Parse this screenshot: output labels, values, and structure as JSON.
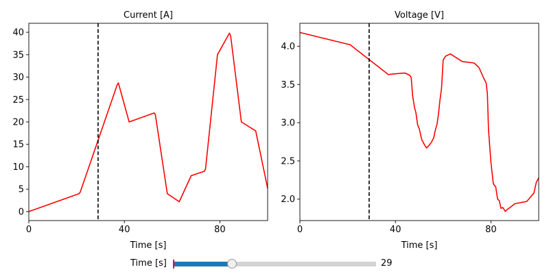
{
  "chart_data": [
    {
      "type": "line",
      "title": "Current [A]",
      "xlabel": "Time [s]",
      "ylabel": "",
      "xlim": [
        0,
        100
      ],
      "ylim": [
        -2,
        42
      ],
      "xticks": [
        0,
        40,
        80
      ],
      "yticks": [
        0,
        5,
        10,
        15,
        20,
        25,
        30,
        35,
        40
      ],
      "grid": false,
      "color": "#ff0000",
      "marker_x": 29,
      "x": [
        0,
        21,
        21.5,
        37,
        37.5,
        42,
        52.5,
        53,
        58,
        63,
        68,
        73.5,
        74,
        79,
        84,
        84.5,
        89,
        95,
        100
      ],
      "y": [
        0,
        4,
        4.3,
        28.3,
        28.7,
        20,
        22,
        21.6,
        4,
        2.2,
        8,
        9,
        9.5,
        35,
        39.8,
        39.2,
        20,
        18,
        5.2
      ]
    },
    {
      "type": "line",
      "title": "Voltage [V]",
      "xlabel": "Time [s]",
      "ylabel": "",
      "xlim": [
        0,
        100
      ],
      "ylim": [
        1.72,
        4.3
      ],
      "xticks": [
        0,
        40,
        80
      ],
      "yticks": [
        2.0,
        2.5,
        3.0,
        3.5,
        4.0
      ],
      "ytick_labels": [
        "2.0",
        "2.5",
        "3.0",
        "3.5",
        "4.0"
      ],
      "grid": false,
      "color": "#ff0000",
      "marker_x": 29,
      "x": [
        0,
        21,
        37,
        40,
        44,
        46,
        46.6,
        47.2,
        48,
        48.6,
        49.3,
        50,
        51,
        52,
        53,
        54,
        55,
        56,
        56.7,
        57.4,
        58,
        58.6,
        59.3,
        60,
        61,
        63,
        68,
        73,
        75,
        77,
        78,
        78.5,
        79,
        80,
        81,
        82,
        82.8,
        83.5,
        84.2,
        85,
        86,
        87,
        88,
        90,
        95,
        98,
        99,
        100
      ],
      "y": [
        4.18,
        4.02,
        3.63,
        3.64,
        3.65,
        3.62,
        3.59,
        3.35,
        3.2,
        3.13,
        2.97,
        2.92,
        2.78,
        2.72,
        2.67,
        2.7,
        2.74,
        2.8,
        2.9,
        2.98,
        3.1,
        3.28,
        3.45,
        3.82,
        3.87,
        3.9,
        3.8,
        3.78,
        3.72,
        3.58,
        3.52,
        3.38,
        2.9,
        2.48,
        2.2,
        2.16,
        2.0,
        1.98,
        1.88,
        1.89,
        1.84,
        1.87,
        1.89,
        1.94,
        1.97,
        2.08,
        2.22,
        2.28
      ]
    }
  ],
  "slider": {
    "label": "Time [s]",
    "min": 0,
    "max": 100,
    "value": 29,
    "value_text": "29",
    "fill_color": "#1f77b4",
    "track_color": "#d3d3d3"
  }
}
